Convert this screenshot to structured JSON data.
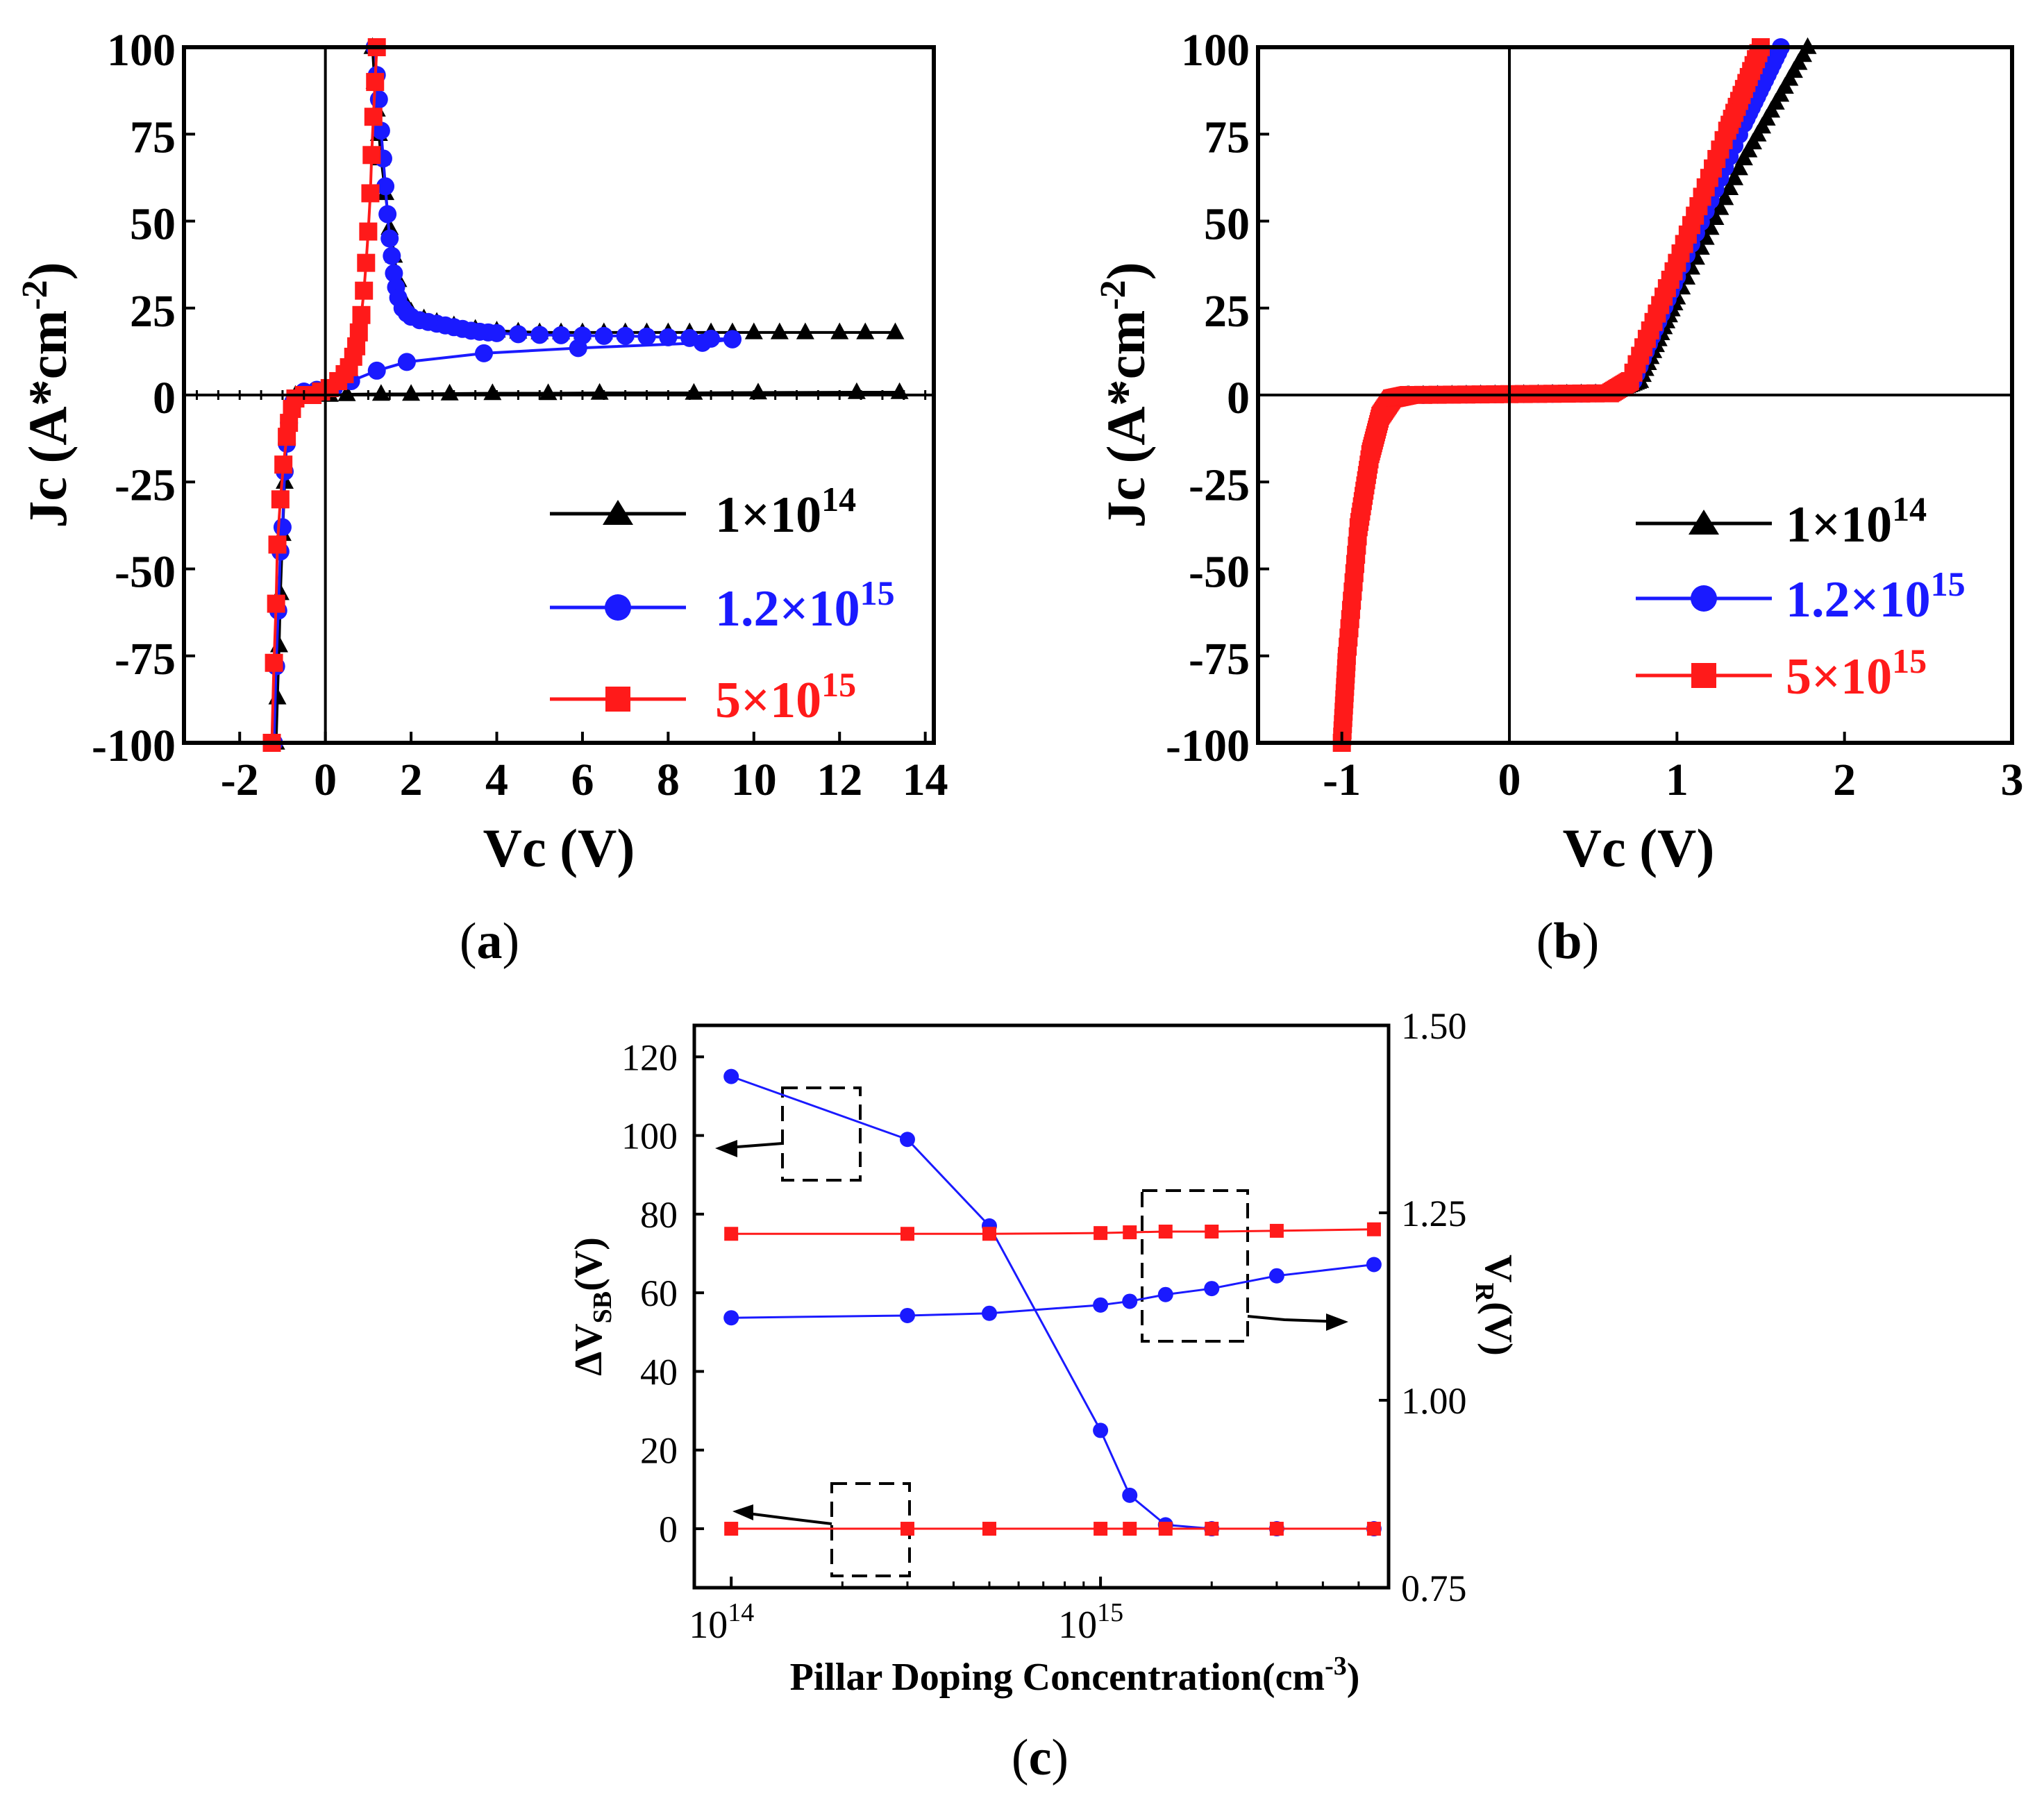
{
  "colors": {
    "s1": "#000000",
    "s2": "#1a1aff",
    "s3": "#ff1a1a",
    "frame": "#000000"
  },
  "captions": {
    "a": "(a)",
    "a_letter": "a",
    "b": "(b)",
    "b_letter": "b",
    "c": "(c)",
    "c_letter": "c"
  },
  "legend_labels": {
    "s1": {
      "base": "1×10",
      "sup": "14"
    },
    "s2": {
      "base": "1.2×10",
      "sup": "15"
    },
    "s3": {
      "base": "5×10",
      "sup": "15"
    }
  },
  "chart_data": [
    {
      "panel": "a",
      "type": "line",
      "xlabel": "Vc (V)",
      "ylabel": {
        "base": "Jc (A*cm",
        "sup": "-2",
        "close": ")"
      },
      "xlim": [
        -3.3,
        14.2
      ],
      "ylim": [
        -100,
        100
      ],
      "xticks": [
        "-2",
        "0",
        "2",
        "4",
        "6",
        "8",
        "10",
        "12",
        "14"
      ],
      "xtick_values": [
        -2,
        0,
        2,
        4,
        6,
        8,
        10,
        12,
        14
      ],
      "yticks": [
        "-100",
        "-75",
        "-50",
        "-25",
        "0",
        "25",
        "50",
        "75",
        "100"
      ],
      "ytick_values": [
        -100,
        -75,
        -50,
        -25,
        0,
        25,
        50,
        75,
        100
      ],
      "legend_position": "lower-right",
      "series": [
        {
          "name": "1×10^14",
          "marker": "triangle",
          "color": "#000000",
          "points": [
            [
              -1.15,
              -100
            ],
            [
              -1.12,
              -87
            ],
            [
              -1.08,
              -72
            ],
            [
              -1.05,
              -57
            ],
            [
              -1.0,
              -40
            ],
            [
              -0.95,
              -25
            ],
            [
              -0.9,
              -12
            ],
            [
              -0.85,
              -5
            ],
            [
              -0.7,
              0
            ],
            [
              -0.3,
              0
            ],
            [
              0.1,
              0
            ],
            [
              0.5,
              0.2
            ],
            [
              1.3,
              0.3
            ],
            [
              2.0,
              0.3
            ],
            [
              2.9,
              0.4
            ],
            [
              3.9,
              0.5
            ],
            [
              5.2,
              0.5
            ],
            [
              6.4,
              0.6
            ],
            [
              8.6,
              0.6
            ],
            [
              10.1,
              0.7
            ],
            [
              12.4,
              0.8
            ],
            [
              13.4,
              0.8
            ]
          ],
          "branch_points": [
            [
              1.1,
              100
            ],
            [
              1.15,
              90
            ],
            [
              1.2,
              82
            ],
            [
              1.25,
              75
            ],
            [
              1.3,
              68
            ],
            [
              1.4,
              58
            ],
            [
              1.5,
              48
            ],
            [
              1.6,
              40
            ],
            [
              1.7,
              33
            ],
            [
              1.8,
              28
            ],
            [
              2.0,
              24
            ],
            [
              2.3,
              22
            ],
            [
              2.6,
              21
            ],
            [
              3.0,
              20
            ],
            [
              3.5,
              19
            ],
            [
              4.0,
              18.5
            ],
            [
              4.5,
              18.2
            ],
            [
              5.0,
              18.0
            ],
            [
              5.5,
              18.0
            ],
            [
              6.0,
              18.0
            ],
            [
              6.5,
              18.0
            ],
            [
              7.0,
              18.0
            ],
            [
              7.5,
              18.0
            ],
            [
              8.0,
              18.0
            ],
            [
              8.5,
              18.0
            ],
            [
              9.0,
              18.0
            ],
            [
              9.5,
              18.0
            ],
            [
              10.0,
              18.0
            ],
            [
              10.6,
              18.0
            ],
            [
              11.2,
              18.0
            ],
            [
              12.0,
              18.0
            ],
            [
              12.6,
              18.0
            ],
            [
              13.3,
              18.0
            ]
          ]
        },
        {
          "name": "1.2×10^15",
          "marker": "circle",
          "color": "#1a1aff",
          "points": [
            [
              -1.2,
              -100
            ],
            [
              -1.15,
              -78
            ],
            [
              -1.1,
              -62
            ],
            [
              -1.05,
              -45
            ],
            [
              -1.0,
              -38
            ],
            [
              -0.95,
              -22
            ],
            [
              -0.9,
              -14
            ],
            [
              -0.85,
              -8
            ],
            [
              -0.75,
              -2
            ],
            [
              -0.5,
              1
            ],
            [
              -0.2,
              1.5
            ],
            [
              0.2,
              2
            ],
            [
              0.6,
              4
            ],
            [
              1.2,
              7
            ],
            [
              1.9,
              9.5
            ],
            [
              3.7,
              12
            ],
            [
              5.9,
              13.5
            ],
            [
              8.8,
              15
            ],
            [
              9.5,
              16
            ]
          ],
          "branch_points": [
            [
              1.15,
              100
            ],
            [
              1.2,
              92
            ],
            [
              1.25,
              85
            ],
            [
              1.3,
              76
            ],
            [
              1.35,
              68
            ],
            [
              1.4,
              60
            ],
            [
              1.45,
              52
            ],
            [
              1.5,
              45
            ],
            [
              1.55,
              40
            ],
            [
              1.6,
              35
            ],
            [
              1.65,
              31
            ],
            [
              1.7,
              28
            ],
            [
              1.8,
              25
            ],
            [
              1.9,
              23.5
            ],
            [
              2.0,
              22.5
            ],
            [
              2.2,
              21.5
            ],
            [
              2.4,
              21
            ],
            [
              2.6,
              20.5
            ],
            [
              2.8,
              20
            ],
            [
              3.0,
              19.5
            ],
            [
              3.2,
              19
            ],
            [
              3.4,
              18.5
            ],
            [
              3.6,
              18.2
            ],
            [
              3.8,
              18
            ],
            [
              4.0,
              17.8
            ],
            [
              4.5,
              17.5
            ],
            [
              5.0,
              17.3
            ],
            [
              5.5,
              17.2
            ],
            [
              6.0,
              17.1
            ],
            [
              6.5,
              17
            ],
            [
              7.0,
              17
            ],
            [
              7.5,
              16.8
            ],
            [
              8.0,
              16.6
            ],
            [
              8.5,
              16.4
            ],
            [
              9.0,
              16.2
            ],
            [
              9.5,
              16.1
            ]
          ]
        },
        {
          "name": "5×10^15",
          "marker": "square",
          "color": "#ff1a1a",
          "points": [
            [
              -1.25,
              -100
            ],
            [
              -1.2,
              -77
            ],
            [
              -1.15,
              -60
            ],
            [
              -1.12,
              -43
            ],
            [
              -1.05,
              -30
            ],
            [
              -0.98,
              -20
            ],
            [
              -0.9,
              -12
            ],
            [
              -0.85,
              -8
            ],
            [
              -0.78,
              -4
            ],
            [
              -0.7,
              -1
            ],
            [
              -0.5,
              0
            ],
            [
              -0.3,
              0
            ],
            [
              -0.1,
              1
            ],
            [
              0.1,
              2
            ],
            [
              0.3,
              4
            ],
            [
              0.45,
              6
            ],
            [
              0.55,
              8
            ],
            [
              0.65,
              11
            ],
            [
              0.72,
              14
            ],
            [
              0.78,
              18
            ],
            [
              0.84,
              23
            ],
            [
              0.9,
              30
            ],
            [
              0.95,
              38
            ],
            [
              1.0,
              47
            ],
            [
              1.05,
              58
            ],
            [
              1.08,
              69
            ],
            [
              1.12,
              80
            ],
            [
              1.16,
              90
            ],
            [
              1.2,
              100
            ]
          ]
        }
      ]
    },
    {
      "panel": "b",
      "type": "line",
      "xlabel": "Vc (V)",
      "ylabel": {
        "base": "Jc (A*cm",
        "sup": "-2",
        "close": ")"
      },
      "xlim": [
        -1.5,
        3.0
      ],
      "ylim": [
        -100,
        100
      ],
      "xticks": [
        "-1",
        "0",
        "1",
        "2",
        "3"
      ],
      "xtick_values": [
        -1,
        0,
        1,
        2,
        3
      ],
      "yticks": [
        "-100",
        "-75",
        "-50",
        "-25",
        "0",
        "25",
        "50",
        "75",
        "100"
      ],
      "ytick_values": [
        -100,
        -75,
        -50,
        -25,
        0,
        25,
        50,
        75,
        100
      ],
      "legend_position": "lower-right",
      "series": [
        {
          "name": "1×10^14",
          "marker": "triangle",
          "color": "#000000",
          "points": [
            [
              -1.0,
              -100
            ],
            [
              -0.97,
              -75
            ],
            [
              -0.9,
              -38
            ],
            [
              -0.83,
              -17
            ],
            [
              -0.77,
              -6
            ],
            [
              -0.7,
              -1
            ],
            [
              -0.6,
              0
            ],
            [
              0.6,
              0.5
            ],
            [
              0.78,
              4
            ],
            [
              1.0,
              28
            ],
            [
              1.4,
              68
            ],
            [
              1.78,
              100
            ]
          ]
        },
        {
          "name": "1.2×10^15",
          "marker": "circle",
          "color": "#1a1aff",
          "points": [
            [
              -1.0,
              -100
            ],
            [
              -0.97,
              -75
            ],
            [
              -0.9,
              -38
            ],
            [
              -0.83,
              -17
            ],
            [
              -0.77,
              -6
            ],
            [
              -0.7,
              -1
            ],
            [
              -0.6,
              0
            ],
            [
              0.6,
              0.5
            ],
            [
              0.74,
              4
            ],
            [
              1.0,
              34
            ],
            [
              1.4,
              78
            ],
            [
              1.62,
              100
            ]
          ]
        },
        {
          "name": "5×10^15",
          "marker": "square",
          "color": "#ff1a1a",
          "points": [
            [
              -1.0,
              -100
            ],
            [
              -0.97,
              -75
            ],
            [
              -0.9,
              -38
            ],
            [
              -0.83,
              -17
            ],
            [
              -0.77,
              -6
            ],
            [
              -0.7,
              -1
            ],
            [
              -0.6,
              0
            ],
            [
              0.6,
              0.5
            ],
            [
              0.72,
              4
            ],
            [
              1.0,
              38
            ],
            [
              1.3,
              76
            ],
            [
              1.5,
              100
            ]
          ]
        }
      ]
    },
    {
      "panel": "c",
      "type": "line",
      "xscale": "log",
      "xlabel": {
        "base": "Pillar Doping Concentration(cm",
        "sup": "-3",
        "close": ")"
      },
      "ylabel_left": {
        "base": "ΔV",
        "sub": "SB",
        "close": "(V)"
      },
      "ylabel_right": {
        "base": "V",
        "sub": "R",
        "close": "(V)"
      },
      "xlim_log10": [
        13.9,
        15.78
      ],
      "ylim_left": [
        -15,
        128
      ],
      "ylim_right": [
        0.75,
        1.5
      ],
      "xticks": [
        {
          "base": "10",
          "sup": "14",
          "value": 100000000000000.0
        },
        {
          "base": "10",
          "sup": "15",
          "value": 1000000000000000.0
        }
      ],
      "yticks_left": [
        "0",
        "20",
        "40",
        "60",
        "80",
        "100",
        "120"
      ],
      "ytick_values_left": [
        0,
        20,
        40,
        60,
        80,
        100,
        120
      ],
      "yticks_right": [
        "0.75",
        "1.00",
        "1.25",
        "1.50"
      ],
      "ytick_values_right": [
        0.75,
        1.0,
        1.25,
        1.5
      ],
      "x": [
        100000000000000.0,
        300000000000000.0,
        500000000000000.0,
        1000000000000000.0,
        1200000000000000.0,
        1500000000000000.0,
        2000000000000000.0,
        3000000000000000.0,
        5500000000000000.0
      ],
      "series": [
        {
          "name": "ΔVSB blue",
          "axis": "left",
          "marker": "circle",
          "color": "#1a1aff",
          "values": [
            115,
            99,
            77,
            25,
            8.5,
            1,
            0,
            0,
            0
          ]
        },
        {
          "name": "ΔVSB red",
          "axis": "left",
          "marker": "square",
          "color": "#ff1a1a",
          "values": [
            0,
            0,
            0,
            0,
            0,
            0,
            0,
            0,
            0
          ]
        },
        {
          "name": "VR blue",
          "axis": "right",
          "marker": "circle",
          "color": "#1a1aff",
          "values": [
            1.11,
            1.113,
            1.116,
            1.127,
            1.132,
            1.141,
            1.149,
            1.166,
            1.181
          ]
        },
        {
          "name": "VR red",
          "axis": "right",
          "marker": "square",
          "color": "#ff1a1a",
          "values": [
            1.222,
            1.222,
            1.222,
            1.223,
            1.224,
            1.225,
            1.225,
            1.226,
            1.228
          ]
        }
      ]
    }
  ]
}
